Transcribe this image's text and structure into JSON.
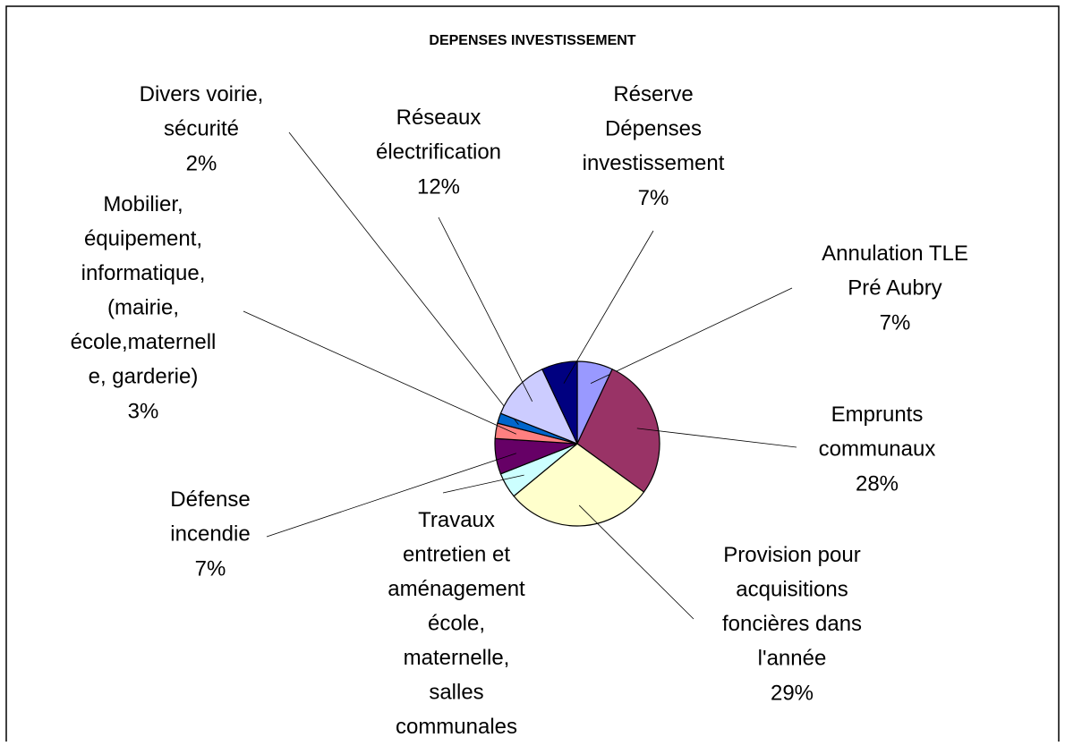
{
  "chart_data": {
    "type": "pie",
    "title": "DEPENSES INVESTISSEMENT",
    "categories": [
      "Annulation TLE\nPré Aubry",
      "Emprunts\ncommunaux",
      "Provision pour\nacquisitions\nfoncières dans\nl'année",
      "Travaux\nentretien et\naménagement\nécole,\nmaternelle,\nsalles\ncommunales",
      "Défense\nincendie",
      "Mobilier,\néquipement,\ninformatique,\n(mairie,\nécole,maternell\ne, garderie)",
      "Divers voirie,\nsécurité",
      "Réseaux\nélectrification",
      "Réserve\nDépenses\ninvestissement"
    ],
    "values": [
      7,
      28,
      29,
      5,
      7,
      3,
      2,
      12,
      7
    ],
    "value_labels": [
      "7%",
      "28%",
      "29%",
      null,
      "7%",
      "3%",
      "2%",
      "12%",
      "7%"
    ],
    "colors": [
      "#9999ff",
      "#993366",
      "#ffffcc",
      "#ccffff",
      "#660066",
      "#ff8080",
      "#0066cc",
      "#ccccff",
      "#000080"
    ]
  }
}
